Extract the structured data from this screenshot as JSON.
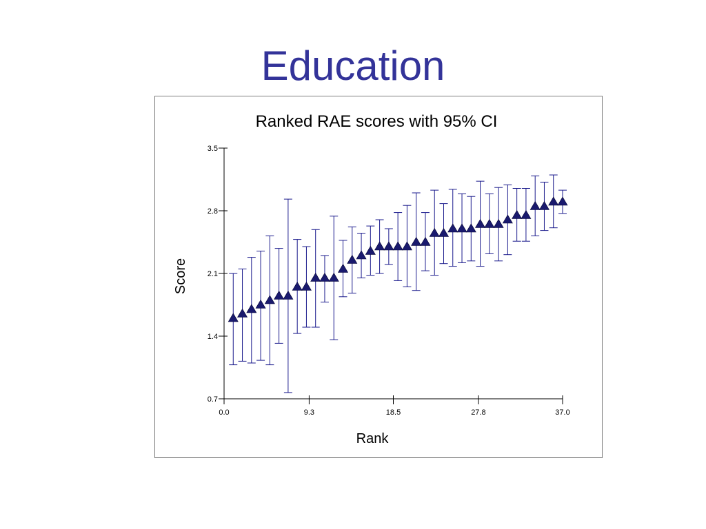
{
  "slide": {
    "title": "Education"
  },
  "colors": {
    "title": "#333399",
    "marker": "#1a1a6e",
    "errorbar": "#1a1a8c",
    "axis": "#000000"
  },
  "chart_data": {
    "type": "scatter",
    "title": "Ranked RAE scores with 95% CI",
    "xlabel": "Rank",
    "ylabel": "Score",
    "xlim": [
      0,
      37
    ],
    "ylim": [
      0.7,
      3.5
    ],
    "xticks": [
      "0.0",
      "9.3",
      "18.5",
      "27.8",
      "37.0"
    ],
    "yticks": [
      "0.7",
      "1.4",
      "2.1",
      "2.8",
      "3.5"
    ],
    "grid": false,
    "legend": "none",
    "points": [
      {
        "x": 1,
        "y": 1.6,
        "lo": 1.08,
        "hi": 2.1
      },
      {
        "x": 2,
        "y": 1.65,
        "lo": 1.12,
        "hi": 2.15
      },
      {
        "x": 3,
        "y": 1.7,
        "lo": 1.1,
        "hi": 2.28
      },
      {
        "x": 4,
        "y": 1.75,
        "lo": 1.13,
        "hi": 2.35
      },
      {
        "x": 5,
        "y": 1.8,
        "lo": 1.08,
        "hi": 2.52
      },
      {
        "x": 6,
        "y": 1.85,
        "lo": 1.32,
        "hi": 2.38
      },
      {
        "x": 7,
        "y": 1.85,
        "lo": 0.77,
        "hi": 2.93
      },
      {
        "x": 8,
        "y": 1.95,
        "lo": 1.43,
        "hi": 2.48
      },
      {
        "x": 9,
        "y": 1.95,
        "lo": 1.5,
        "hi": 2.4
      },
      {
        "x": 10,
        "y": 2.05,
        "lo": 1.5,
        "hi": 2.59
      },
      {
        "x": 11,
        "y": 2.05,
        "lo": 1.78,
        "hi": 2.3
      },
      {
        "x": 12,
        "y": 2.05,
        "lo": 1.36,
        "hi": 2.74
      },
      {
        "x": 13,
        "y": 2.15,
        "lo": 1.84,
        "hi": 2.47
      },
      {
        "x": 14,
        "y": 2.25,
        "lo": 1.88,
        "hi": 2.62
      },
      {
        "x": 15,
        "y": 2.3,
        "lo": 2.05,
        "hi": 2.55
      },
      {
        "x": 16,
        "y": 2.35,
        "lo": 2.08,
        "hi": 2.63
      },
      {
        "x": 17,
        "y": 2.4,
        "lo": 2.1,
        "hi": 2.7
      },
      {
        "x": 18,
        "y": 2.4,
        "lo": 2.2,
        "hi": 2.6
      },
      {
        "x": 19,
        "y": 2.4,
        "lo": 2.02,
        "hi": 2.78
      },
      {
        "x": 20,
        "y": 2.4,
        "lo": 1.95,
        "hi": 2.86
      },
      {
        "x": 21,
        "y": 2.45,
        "lo": 1.91,
        "hi": 3.0
      },
      {
        "x": 22,
        "y": 2.45,
        "lo": 2.13,
        "hi": 2.78
      },
      {
        "x": 23,
        "y": 2.55,
        "lo": 2.08,
        "hi": 3.03
      },
      {
        "x": 24,
        "y": 2.55,
        "lo": 2.21,
        "hi": 2.88
      },
      {
        "x": 25,
        "y": 2.6,
        "lo": 2.18,
        "hi": 3.04
      },
      {
        "x": 26,
        "y": 2.6,
        "lo": 2.22,
        "hi": 2.99
      },
      {
        "x": 27,
        "y": 2.6,
        "lo": 2.24,
        "hi": 2.96
      },
      {
        "x": 28,
        "y": 2.65,
        "lo": 2.18,
        "hi": 3.13
      },
      {
        "x": 29,
        "y": 2.65,
        "lo": 2.32,
        "hi": 2.99
      },
      {
        "x": 30,
        "y": 2.65,
        "lo": 2.24,
        "hi": 3.06
      },
      {
        "x": 31,
        "y": 2.7,
        "lo": 2.31,
        "hi": 3.09
      },
      {
        "x": 32,
        "y": 2.75,
        "lo": 2.46,
        "hi": 3.05
      },
      {
        "x": 33,
        "y": 2.75,
        "lo": 2.46,
        "hi": 3.05
      },
      {
        "x": 34,
        "y": 2.85,
        "lo": 2.52,
        "hi": 3.19
      },
      {
        "x": 35,
        "y": 2.85,
        "lo": 2.58,
        "hi": 3.12
      },
      {
        "x": 36,
        "y": 2.9,
        "lo": 2.61,
        "hi": 3.2
      },
      {
        "x": 37,
        "y": 2.9,
        "lo": 2.77,
        "hi": 3.03
      }
    ]
  }
}
